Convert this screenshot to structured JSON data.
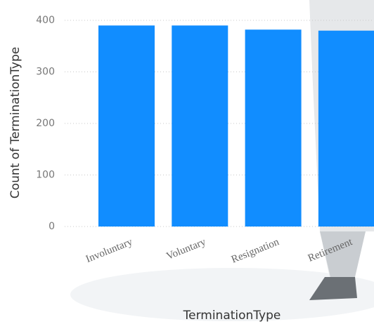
{
  "chart_data": {
    "type": "bar",
    "categories": [
      "Involuntary",
      "Voluntary",
      "Resignation",
      "Retirement"
    ],
    "values": [
      390,
      390,
      382,
      380
    ],
    "color": "#118DFF",
    "x_label": "TerminationType",
    "y_label": "Count of TerminationType",
    "ylim": [
      0,
      400
    ],
    "yticks": [
      0,
      100,
      200,
      300,
      400
    ],
    "grid": true
  }
}
